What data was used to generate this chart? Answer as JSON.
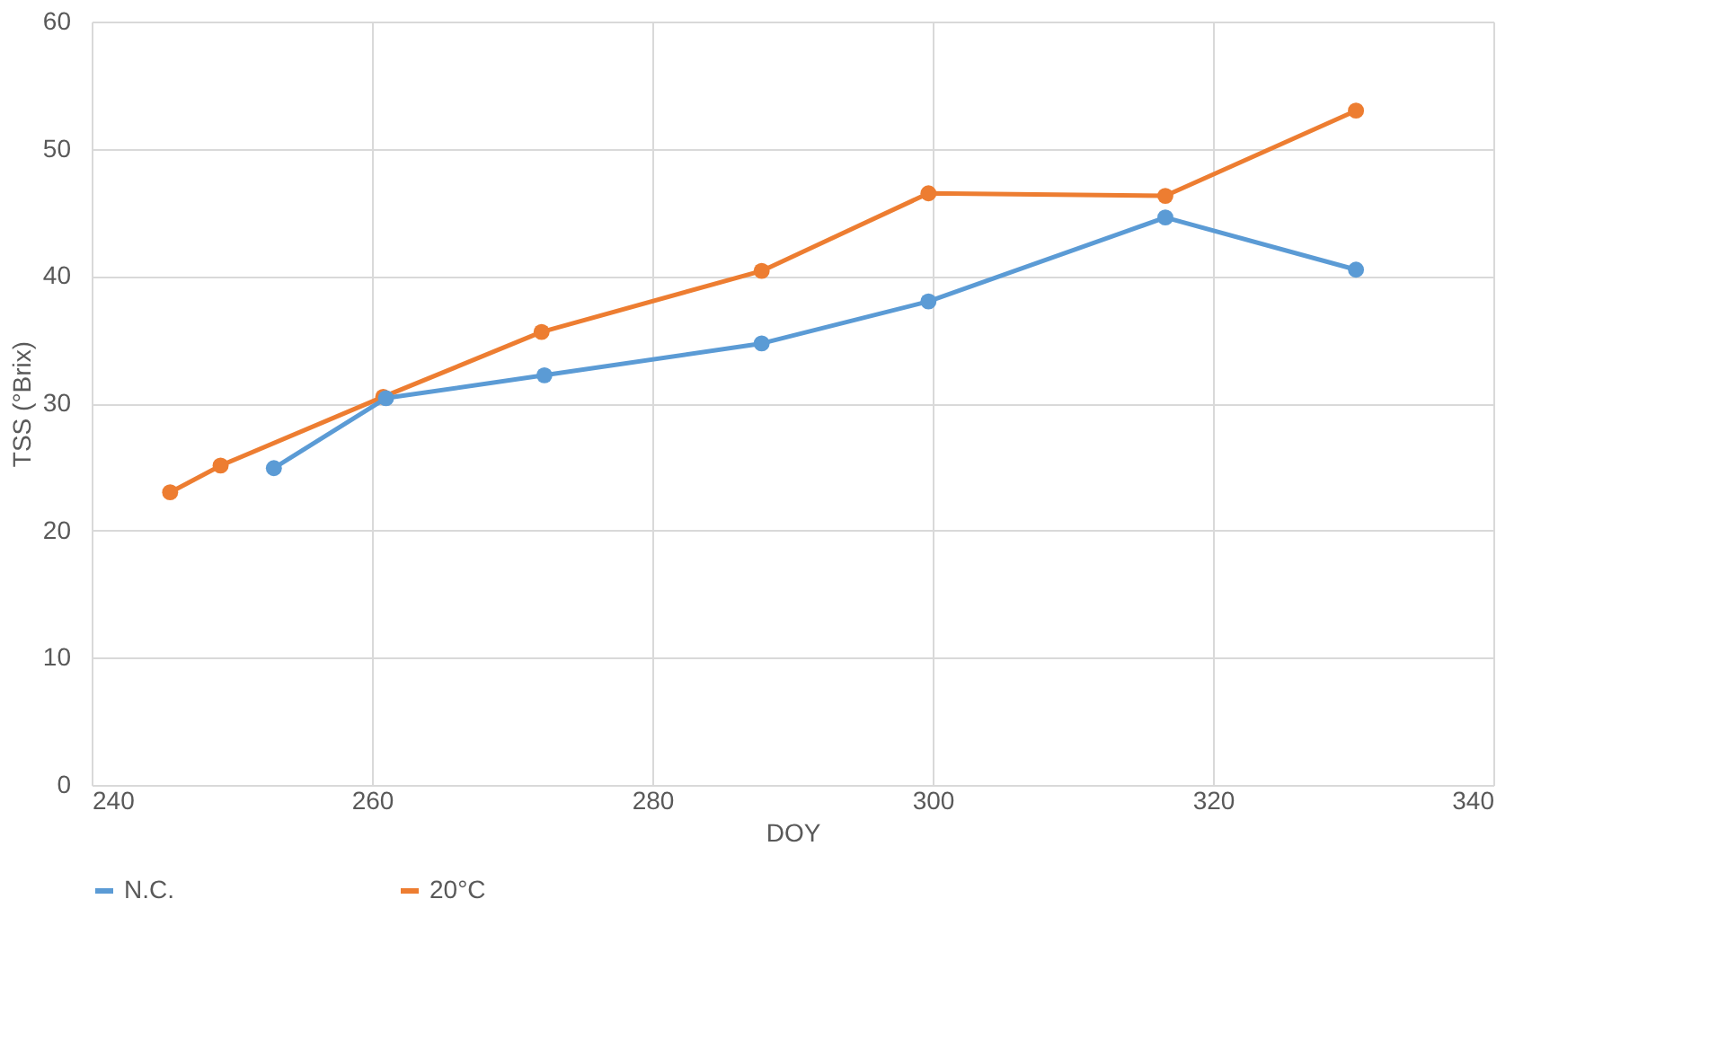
{
  "chart_data": {
    "type": "line",
    "xlabel": "DOY",
    "ylabel": "TSS (°Brix)",
    "xlim": [
      240,
      340
    ],
    "xticks": [
      240,
      260,
      280,
      300,
      320,
      340
    ],
    "ylim": [
      0,
      60
    ],
    "yticks": [
      0,
      10,
      20,
      30,
      40,
      50,
      60
    ],
    "grid": true,
    "legend": "bottom",
    "marker": "circle",
    "line_style": "solid",
    "series": [
      {
        "name": "N.C.",
        "color": "#5b9bd5",
        "x": [
          253,
          261,
          272.3,
          287.8,
          299.7,
          316.6,
          330.2
        ],
        "values": [
          24.9,
          30.4,
          32.2,
          34.7,
          38,
          44.6,
          40.5
        ]
      },
      {
        "name": "20°C",
        "color": "#ed7d31",
        "x": [
          245.6,
          249.2,
          260.8,
          272.1,
          287.8,
          299.7,
          316.6,
          330.2
        ],
        "values": [
          23,
          25.1,
          30.5,
          35.6,
          40.4,
          46.5,
          46.3,
          53
        ]
      }
    ]
  }
}
